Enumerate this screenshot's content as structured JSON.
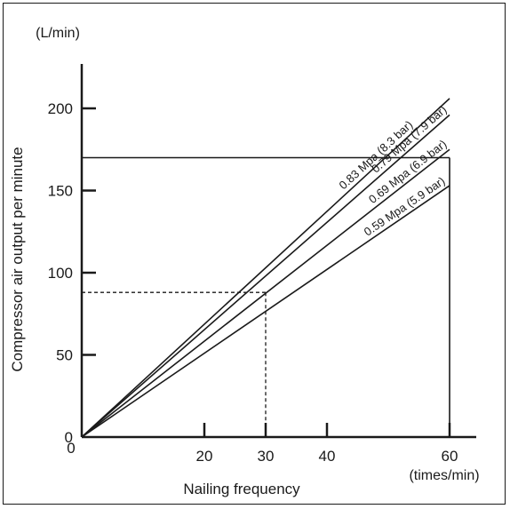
{
  "chart_data": {
    "type": "line",
    "title": "",
    "xlabel": "Nailing frequency",
    "ylabel": "Compressor air output per minute",
    "x_unit": "(times/min)",
    "y_unit": "(L/min)",
    "xlim": [
      0,
      66
    ],
    "ylim": [
      0,
      225
    ],
    "x_ticks": [
      20,
      30,
      40,
      60
    ],
    "y_ticks": [
      0,
      50,
      100,
      150,
      200
    ],
    "origin_label": "0",
    "grid": false,
    "series": [
      {
        "name": "0.83 Mpa (8.3 bar)",
        "x": [
          0,
          60
        ],
        "y": [
          0,
          206
        ]
      },
      {
        "name": "0.79 Mpa (7.9 bar)",
        "x": [
          0,
          60
        ],
        "y": [
          0,
          196
        ]
      },
      {
        "name": "0.69 Mpa (6.9 bar)",
        "x": [
          0,
          60
        ],
        "y": [
          0,
          175
        ]
      },
      {
        "name": "0.59 Mpa (5.9 bar)",
        "x": [
          0,
          60
        ],
        "y": [
          0,
          153
        ]
      }
    ],
    "reference_lines": [
      {
        "style": "solid",
        "x": 60,
        "y": 170
      },
      {
        "style": "dashed",
        "x": 30,
        "y": 88
      }
    ]
  }
}
